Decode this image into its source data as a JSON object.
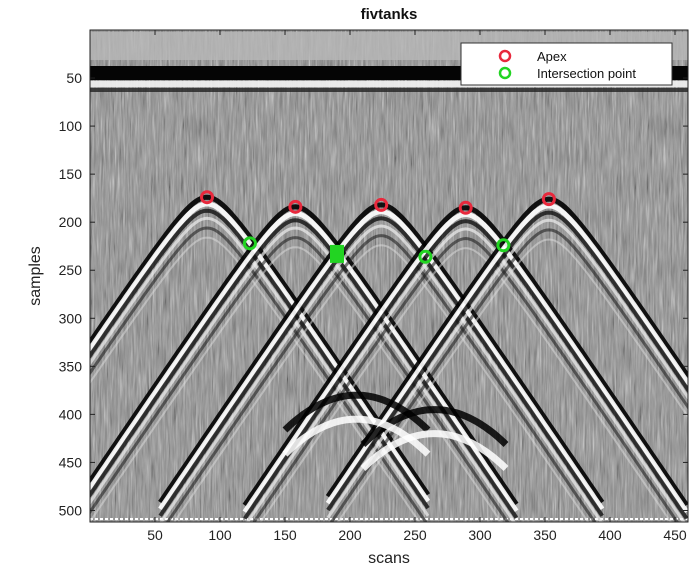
{
  "chart_data": {
    "type": "scatter",
    "title": "fivtanks",
    "xlabel": "scans",
    "ylabel": "samples",
    "xlim": [
      0,
      460
    ],
    "ylim": [
      0,
      512
    ],
    "y_reversed": true,
    "background": "GPR radargram (grayscale B-scan)",
    "xticks": [
      50,
      100,
      150,
      200,
      250,
      300,
      350,
      400,
      450
    ],
    "yticks": [
      50,
      100,
      150,
      200,
      250,
      300,
      350,
      400,
      450,
      500
    ],
    "legend_position": "top-right",
    "series": [
      {
        "name": "Apex",
        "color": "#e8283c",
        "marker": "circle-outline",
        "x": [
          90,
          158,
          224,
          289,
          353
        ],
        "y": [
          174,
          184,
          182,
          185,
          176
        ]
      },
      {
        "name": "Intersection point",
        "color": "#22d422",
        "marker": "circle-outline",
        "x": [
          123,
          190,
          258,
          318
        ],
        "y": [
          222,
          233,
          236,
          224
        ]
      }
    ],
    "annotations": [
      {
        "label": "",
        "color": "#22d422",
        "shape": "filled-square",
        "x": 190,
        "y": 233
      }
    ]
  }
}
